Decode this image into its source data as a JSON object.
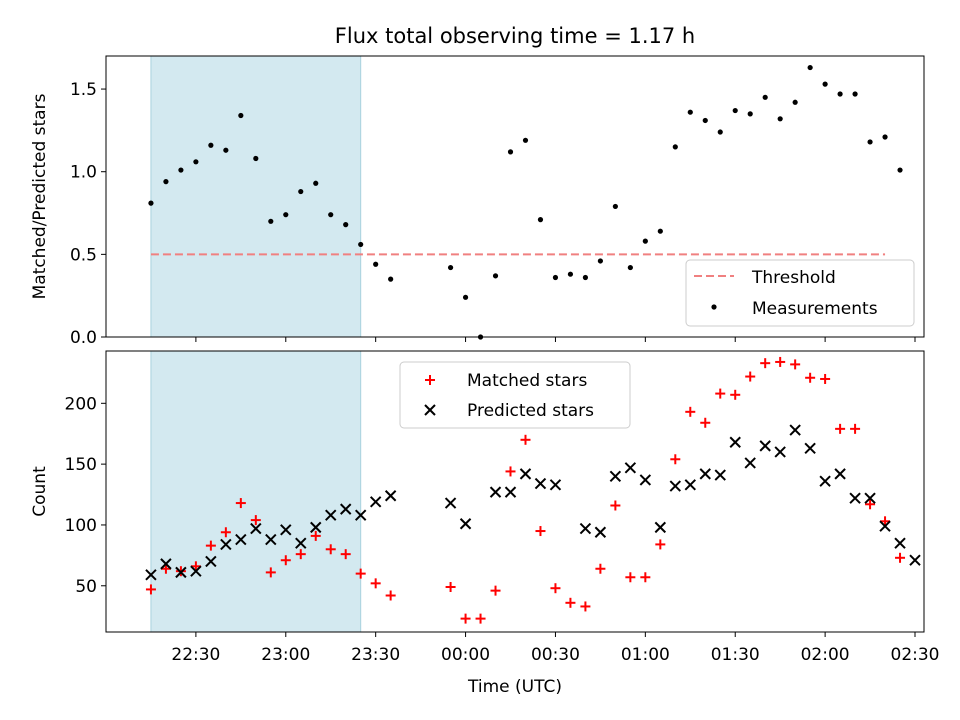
{
  "chart_data": [
    {
      "type": "scatter",
      "title": "Flux total observing time = 1.17 h",
      "ylabel": "Matched/Predicted stars",
      "xlabel": "",
      "ylim": [
        0,
        1.7
      ],
      "xlim": [
        "22:00",
        "02:33"
      ],
      "yticks": [
        0.0,
        0.5,
        1.0,
        1.5
      ],
      "ytick_labels": [
        "0.0",
        "0.5",
        "1.0",
        "1.5"
      ],
      "xtick_labels_hidden": true,
      "shaded_interval": {
        "start": "22:15",
        "end": "23:25",
        "color": "#d3e9f0"
      },
      "threshold": {
        "name": "Threshold",
        "value": 0.5,
        "start": "22:15",
        "end": "02:20",
        "color": "#f08080",
        "style": "dashed"
      },
      "series": [
        {
          "name": "Measurements",
          "color": "#000000",
          "marker": "dot",
          "points": [
            [
              "22:15",
              0.81
            ],
            [
              "22:20",
              0.94
            ],
            [
              "22:25",
              1.01
            ],
            [
              "22:30",
              1.06
            ],
            [
              "22:35",
              1.16
            ],
            [
              "22:40",
              1.13
            ],
            [
              "22:45",
              1.34
            ],
            [
              "22:50",
              1.08
            ],
            [
              "22:55",
              0.7
            ],
            [
              "23:00",
              0.74
            ],
            [
              "23:05",
              0.88
            ],
            [
              "23:10",
              0.93
            ],
            [
              "23:15",
              0.74
            ],
            [
              "23:20",
              0.68
            ],
            [
              "23:25",
              0.56
            ],
            [
              "23:30",
              0.44
            ],
            [
              "23:35",
              0.35
            ],
            [
              "23:55",
              0.42
            ],
            [
              "24:00",
              0.24
            ],
            [
              "24:05",
              0.0
            ],
            [
              "24:10",
              0.37
            ],
            [
              "24:15",
              1.12
            ],
            [
              "24:20",
              1.19
            ],
            [
              "24:25",
              0.71
            ],
            [
              "24:30",
              0.36
            ],
            [
              "24:35",
              0.38
            ],
            [
              "24:40",
              0.36
            ],
            [
              "24:45",
              0.46
            ],
            [
              "24:50",
              0.79
            ],
            [
              "24:55",
              0.42
            ],
            [
              "25:00",
              0.58
            ],
            [
              "25:05",
              0.64
            ],
            [
              "25:10",
              1.15
            ],
            [
              "25:15",
              1.36
            ],
            [
              "25:20",
              1.31
            ],
            [
              "25:25",
              1.24
            ],
            [
              "25:30",
              1.37
            ],
            [
              "25:35",
              1.35
            ],
            [
              "25:40",
              1.45
            ],
            [
              "25:45",
              1.32
            ],
            [
              "25:50",
              1.42
            ],
            [
              "25:55",
              1.63
            ],
            [
              "26:00",
              1.53
            ],
            [
              "26:05",
              1.47
            ],
            [
              "26:10",
              1.47
            ],
            [
              "26:15",
              1.18
            ],
            [
              "26:20",
              1.21
            ],
            [
              "26:25",
              1.01
            ]
          ]
        }
      ],
      "legend": {
        "placement": "lower-right",
        "entries": [
          "Threshold",
          "Measurements"
        ]
      }
    },
    {
      "type": "scatter",
      "title": "",
      "ylabel": "Count",
      "xlabel": "Time (UTC)",
      "ylim": [
        12,
        243
      ],
      "xlim": [
        "22:00",
        "02:33"
      ],
      "yticks": [
        50,
        100,
        150,
        200
      ],
      "ytick_labels": [
        "50",
        "100",
        "150",
        "200"
      ],
      "xticks": [
        "22:30",
        "23:00",
        "23:30",
        "00:00",
        "00:30",
        "01:00",
        "01:30",
        "02:00",
        "02:30"
      ],
      "shaded_interval": {
        "start": "22:15",
        "end": "23:25",
        "color": "#d3e9f0"
      },
      "series": [
        {
          "name": "Matched stars",
          "color": "#ff0000",
          "marker": "plus",
          "points": [
            [
              "22:15",
              47
            ],
            [
              "22:20",
              64
            ],
            [
              "22:25",
              62
            ],
            [
              "22:30",
              66
            ],
            [
              "22:35",
              83
            ],
            [
              "22:40",
              94
            ],
            [
              "22:45",
              118
            ],
            [
              "22:50",
              104
            ],
            [
              "22:55",
              61
            ],
            [
              "23:00",
              71
            ],
            [
              "23:05",
              76
            ],
            [
              "23:10",
              91
            ],
            [
              "23:15",
              80
            ],
            [
              "23:20",
              76
            ],
            [
              "23:25",
              60
            ],
            [
              "23:30",
              52
            ],
            [
              "23:35",
              42
            ],
            [
              "23:55",
              49
            ],
            [
              "24:00",
              23
            ],
            [
              "24:05",
              23
            ],
            [
              "24:10",
              46
            ],
            [
              "24:15",
              144
            ],
            [
              "24:20",
              170
            ],
            [
              "24:25",
              95
            ],
            [
              "24:30",
              48
            ],
            [
              "24:35",
              36
            ],
            [
              "24:40",
              33
            ],
            [
              "24:45",
              64
            ],
            [
              "24:50",
              116
            ],
            [
              "24:55",
              57
            ],
            [
              "25:00",
              57
            ],
            [
              "25:05",
              84
            ],
            [
              "25:10",
              154
            ],
            [
              "25:15",
              193
            ],
            [
              "25:20",
              184
            ],
            [
              "25:25",
              208
            ],
            [
              "25:30",
              207
            ],
            [
              "25:35",
              222
            ],
            [
              "25:40",
              233
            ],
            [
              "25:45",
              234
            ],
            [
              "25:50",
              232
            ],
            [
              "25:55",
              221
            ],
            [
              "26:00",
              220
            ],
            [
              "26:05",
              179
            ],
            [
              "26:10",
              179
            ],
            [
              "26:15",
              117
            ],
            [
              "26:20",
              103
            ],
            [
              "26:25",
              73
            ]
          ]
        },
        {
          "name": "Predicted stars",
          "color": "#000000",
          "marker": "x",
          "points": [
            [
              "22:15",
              59
            ],
            [
              "22:20",
              68
            ],
            [
              "22:25",
              61
            ],
            [
              "22:30",
              62
            ],
            [
              "22:35",
              70
            ],
            [
              "22:40",
              84
            ],
            [
              "22:45",
              88
            ],
            [
              "22:50",
              97
            ],
            [
              "22:55",
              88
            ],
            [
              "23:00",
              96
            ],
            [
              "23:05",
              85
            ],
            [
              "23:10",
              98
            ],
            [
              "23:15",
              108
            ],
            [
              "23:20",
              113
            ],
            [
              "23:25",
              108
            ],
            [
              "23:30",
              119
            ],
            [
              "23:35",
              124
            ],
            [
              "23:55",
              118
            ],
            [
              "24:00",
              101
            ],
            [
              "24:10",
              127
            ],
            [
              "24:15",
              127
            ],
            [
              "24:20",
              142
            ],
            [
              "24:25",
              134
            ],
            [
              "24:30",
              133
            ],
            [
              "24:40",
              97
            ],
            [
              "24:45",
              94
            ],
            [
              "24:50",
              140
            ],
            [
              "24:55",
              147
            ],
            [
              "25:00",
              137
            ],
            [
              "25:05",
              98
            ],
            [
              "25:10",
              132
            ],
            [
              "25:15",
              133
            ],
            [
              "25:20",
              142
            ],
            [
              "25:25",
              141
            ],
            [
              "25:30",
              168
            ],
            [
              "25:35",
              151
            ],
            [
              "25:40",
              165
            ],
            [
              "25:45",
              160
            ],
            [
              "25:50",
              178
            ],
            [
              "25:55",
              163
            ],
            [
              "26:00",
              136
            ],
            [
              "26:05",
              142
            ],
            [
              "26:10",
              122
            ],
            [
              "26:15",
              122
            ],
            [
              "26:20",
              99
            ],
            [
              "26:25",
              85
            ],
            [
              "26:30",
              71
            ]
          ]
        }
      ],
      "legend": {
        "placement": "upper-center",
        "entries": [
          "Matched stars",
          "Predicted stars"
        ]
      }
    }
  ]
}
